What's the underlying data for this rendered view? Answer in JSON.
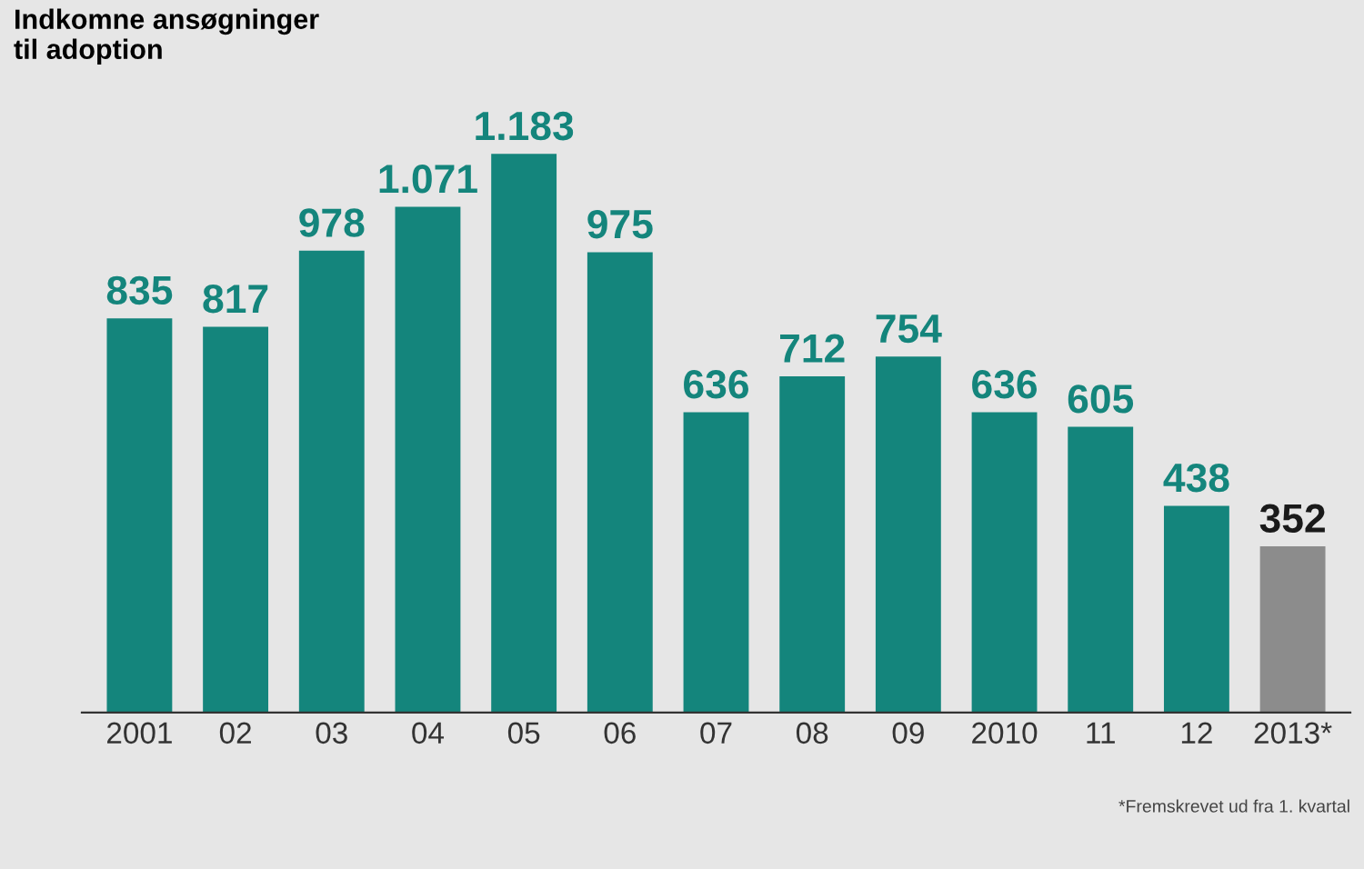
{
  "chart_data": {
    "type": "bar",
    "title": "Indkomne ansøgninger\ntil adoption",
    "categories": [
      "2001",
      "02",
      "03",
      "04",
      "05",
      "06",
      "07",
      "08",
      "09",
      "2010",
      "11",
      "12",
      "2013*"
    ],
    "values": [
      835,
      817,
      978,
      1071,
      1183,
      975,
      636,
      712,
      754,
      636,
      605,
      438,
      352
    ],
    "value_labels": [
      "835",
      "817",
      "978",
      "1.071",
      "1.183",
      "975",
      "636",
      "712",
      "754",
      "636",
      "605",
      "438",
      "352"
    ],
    "colors": [
      "#14857c",
      "#14857c",
      "#14857c",
      "#14857c",
      "#14857c",
      "#14857c",
      "#14857c",
      "#14857c",
      "#14857c",
      "#14857c",
      "#14857c",
      "#14857c",
      "#8c8c8c"
    ],
    "annotations": [
      "*Fremskrevet ud fra 1. kvartal"
    ],
    "grid": false
  }
}
